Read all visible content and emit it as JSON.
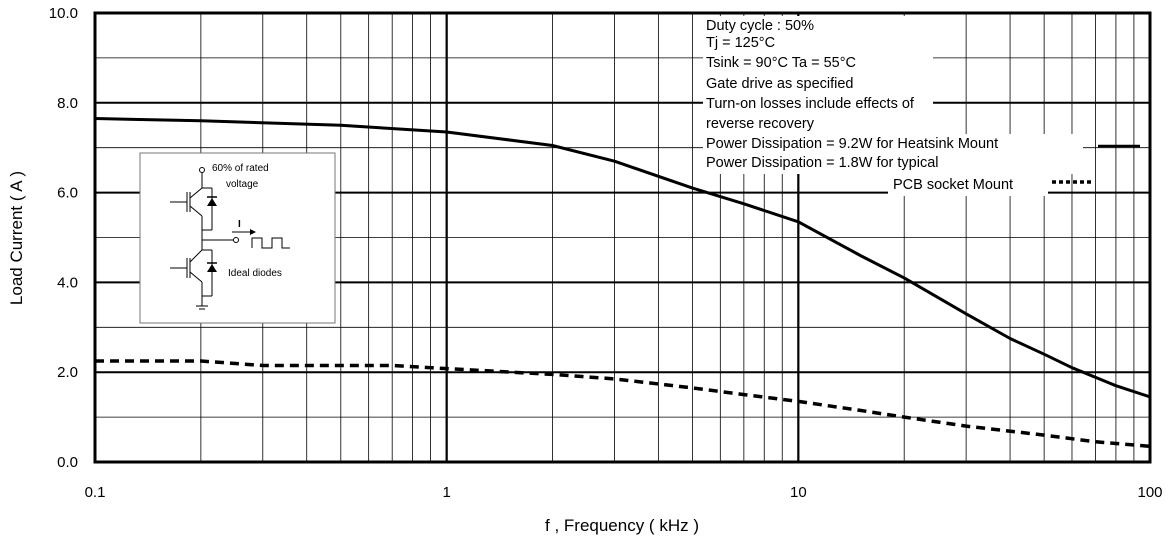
{
  "chart_data": {
    "type": "line",
    "x_scale": "log",
    "xlim": [
      0.1,
      100
    ],
    "ylim": [
      0,
      10
    ],
    "xlabel": "f , Frequency ( kHz )",
    "ylabel": "Load Current  ( A )",
    "x_ticks": [
      "0.1",
      "1",
      "10",
      "100"
    ],
    "y_ticks": [
      "0.0",
      "2.0",
      "4.0",
      "6.0",
      "8.0",
      "10.0"
    ],
    "grid": true,
    "series": [
      {
        "key": "heatsink",
        "style": "solid",
        "x": [
          0.1,
          0.2,
          0.5,
          1,
          2,
          3,
          5,
          7,
          10,
          15,
          20,
          30,
          40,
          50,
          60,
          80,
          100
        ],
        "y": [
          7.65,
          7.6,
          7.5,
          7.35,
          7.05,
          6.7,
          6.1,
          5.75,
          5.35,
          4.6,
          4.1,
          3.3,
          2.75,
          2.4,
          2.1,
          1.7,
          1.45
        ]
      },
      {
        "key": "pcb",
        "style": "dashed",
        "x": [
          0.1,
          0.2,
          0.3,
          0.5,
          0.7,
          1,
          2,
          3,
          5,
          7,
          10,
          15,
          20,
          30,
          50,
          70,
          100
        ],
        "y": [
          2.25,
          2.25,
          2.15,
          2.15,
          2.15,
          2.08,
          1.95,
          1.85,
          1.65,
          1.5,
          1.35,
          1.15,
          1.0,
          0.8,
          0.6,
          0.45,
          0.35
        ]
      }
    ],
    "annotations": [
      "Duty cycle : 50%",
      "Tj = 125°C",
      "Tsink = 90°C    Ta = 55°C",
      "Gate drive as specified",
      "Turn-on losses include effects of",
      "reverse recovery",
      "Power Dissipation = 9.2W for Heatsink Mount",
      "Power Dissipation = 1.8W for typical",
      "PCB socket Mount"
    ],
    "inset": {
      "label_top_1": "60% of rated",
      "label_top_2": "voltage",
      "label_current": "I",
      "label_bottom": "Ideal diodes"
    }
  }
}
